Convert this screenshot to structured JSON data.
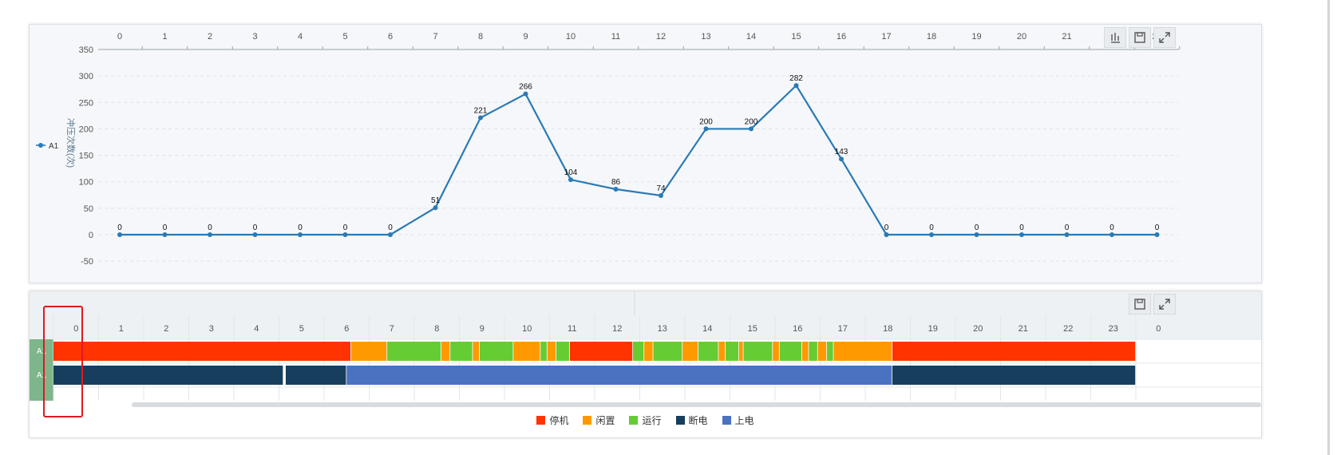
{
  "chart_data": {
    "type": "line",
    "x": [
      "0",
      "1",
      "2",
      "3",
      "4",
      "5",
      "6",
      "7",
      "8",
      "9",
      "10",
      "11",
      "12",
      "13",
      "14",
      "15",
      "16",
      "17",
      "18",
      "19",
      "20",
      "21",
      "22",
      "23"
    ],
    "series": [
      {
        "name": "A1",
        "values": [
          0,
          0,
          0,
          0,
          0,
          0,
          0,
          51,
          221,
          266,
          104,
          86,
          74,
          200,
          200,
          282,
          143,
          0,
          0,
          0,
          0,
          0,
          0,
          0
        ]
      }
    ],
    "ylabel": "冲压次数(次)",
    "ylim": [
      -50,
      350
    ],
    "yticks": [
      -50,
      0,
      50,
      100,
      150,
      200,
      250,
      300,
      350
    ],
    "x_axis_position": "top",
    "legend_position": "left",
    "grid": true,
    "color": "#2a7ab5"
  },
  "chart_toolbar": {
    "data_view_icon": "data-view-icon",
    "save_icon": "save-image-icon",
    "fullscreen_icon": "fullscreen-icon"
  },
  "gantt": {
    "hours": [
      "0",
      "1",
      "2",
      "3",
      "4",
      "5",
      "6",
      "7",
      "8",
      "9",
      "10",
      "11",
      "12",
      "13",
      "14",
      "15",
      "16",
      "17",
      "18",
      "19",
      "20",
      "21",
      "22",
      "23",
      "0"
    ],
    "rows": [
      {
        "label": "A1",
        "segments": [
          {
            "start": 0,
            "end": 6.6,
            "status": "stop"
          },
          {
            "start": 6.6,
            "end": 7.4,
            "status": "idle"
          },
          {
            "start": 7.4,
            "end": 8.6,
            "status": "run"
          },
          {
            "start": 8.6,
            "end": 8.8,
            "status": "idle"
          },
          {
            "start": 8.8,
            "end": 9.3,
            "status": "run"
          },
          {
            "start": 9.3,
            "end": 9.45,
            "status": "idle"
          },
          {
            "start": 9.45,
            "end": 10.2,
            "status": "run"
          },
          {
            "start": 10.2,
            "end": 10.8,
            "status": "idle"
          },
          {
            "start": 10.8,
            "end": 10.95,
            "status": "run"
          },
          {
            "start": 10.95,
            "end": 11.15,
            "status": "idle"
          },
          {
            "start": 11.15,
            "end": 11.45,
            "status": "run"
          },
          {
            "start": 11.45,
            "end": 12.85,
            "status": "stop"
          },
          {
            "start": 12.85,
            "end": 13.1,
            "status": "run"
          },
          {
            "start": 13.1,
            "end": 13.3,
            "status": "idle"
          },
          {
            "start": 13.3,
            "end": 13.95,
            "status": "run"
          },
          {
            "start": 13.95,
            "end": 14.3,
            "status": "idle"
          },
          {
            "start": 14.3,
            "end": 14.75,
            "status": "run"
          },
          {
            "start": 14.75,
            "end": 14.9,
            "status": "idle"
          },
          {
            "start": 14.9,
            "end": 15.2,
            "status": "run"
          },
          {
            "start": 15.2,
            "end": 15.3,
            "status": "idle"
          },
          {
            "start": 15.3,
            "end": 15.95,
            "status": "run"
          },
          {
            "start": 15.95,
            "end": 16.1,
            "status": "idle"
          },
          {
            "start": 16.1,
            "end": 16.6,
            "status": "run"
          },
          {
            "start": 16.6,
            "end": 16.75,
            "status": "idle"
          },
          {
            "start": 16.75,
            "end": 16.95,
            "status": "run"
          },
          {
            "start": 16.95,
            "end": 17.15,
            "status": "idle"
          },
          {
            "start": 17.15,
            "end": 17.3,
            "status": "run"
          },
          {
            "start": 17.3,
            "end": 18.6,
            "status": "idle"
          },
          {
            "start": 18.6,
            "end": 24,
            "status": "stop"
          }
        ]
      },
      {
        "label": "A1",
        "segments": [
          {
            "start": 0,
            "end": 5.1,
            "status": "power_off"
          },
          {
            "start": 5.15,
            "end": 6.5,
            "status": "power_off"
          },
          {
            "start": 6.5,
            "end": 18.6,
            "status": "power_on"
          },
          {
            "start": 18.6,
            "end": 24,
            "status": "power_off"
          }
        ]
      }
    ],
    "legend": [
      {
        "key": "stop",
        "label": "停机",
        "color": "#ff3300"
      },
      {
        "key": "idle",
        "label": "闲置",
        "color": "#ff9900"
      },
      {
        "key": "run",
        "label": "运行",
        "color": "#66cc33"
      },
      {
        "key": "power_off",
        "label": "断电",
        "color": "#173e5c"
      },
      {
        "key": "power_on",
        "label": "上电",
        "color": "#4a72c0"
      }
    ],
    "save_icon": "save-image-icon",
    "fullscreen_icon": "fullscreen-icon"
  }
}
